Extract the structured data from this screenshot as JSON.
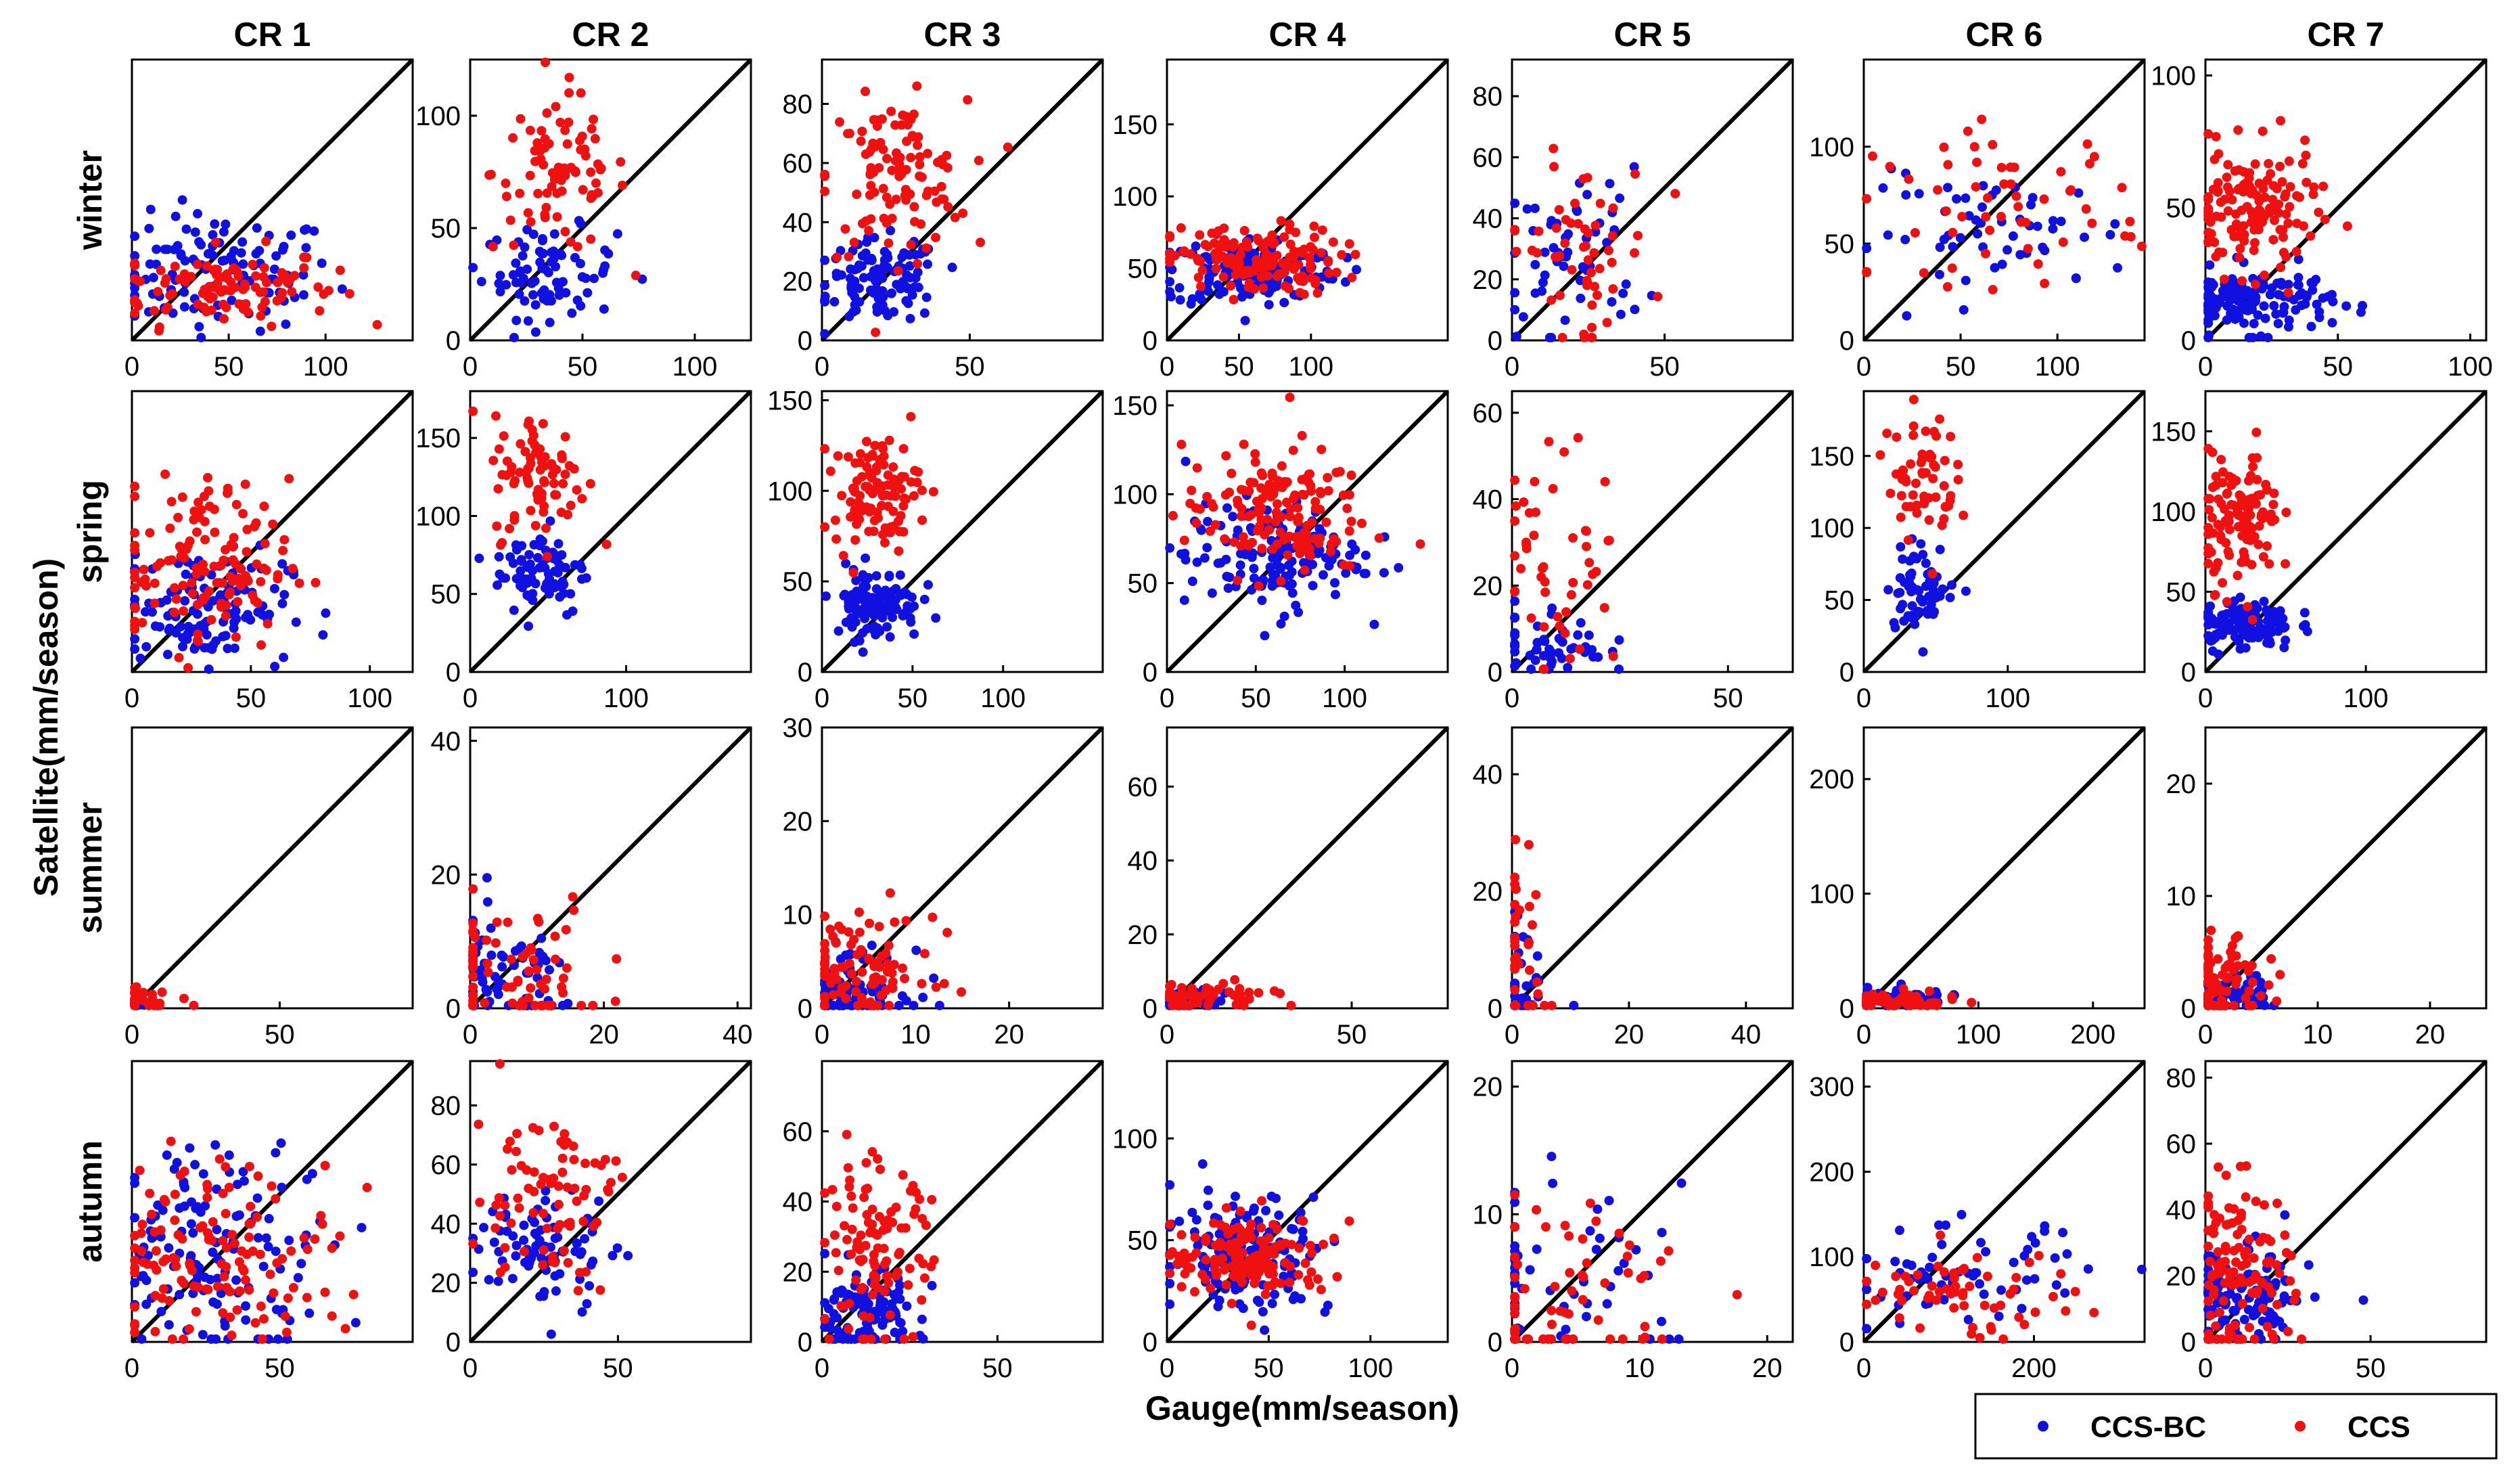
{
  "colors": {
    "ccs_bc": "#1010e0",
    "ccs": "#f01010",
    "axes": "#000000",
    "background": "#ffffff"
  },
  "chart_data": {
    "type": "scatter",
    "title": "",
    "xlabel": "Gauge(mm/season)",
    "ylabel": "Satellite(mm/season)",
    "columns": [
      "CR 1",
      "CR 2",
      "CR 3",
      "CR 4",
      "CR 5",
      "CR 6",
      "CR 7"
    ],
    "rows": [
      "winter",
      "spring",
      "summer",
      "autumn"
    ],
    "legend": {
      "placement": "bottom-right",
      "entries": [
        "CCS-BC",
        "CCS"
      ]
    },
    "panels": [
      [
        {
          "xlim": [
            0,
            145
          ],
          "ylim": [
            0,
            145
          ],
          "xticks": [
            0,
            50,
            100
          ],
          "yticks": [],
          "bc": {
            "cx": 45,
            "cy": 35,
            "sx": 30,
            "sy": 15,
            "n": 110
          },
          "ccs": {
            "cx": 45,
            "cy": 28,
            "sx": 30,
            "sy": 10,
            "n": 110
          }
        },
        {
          "xlim": [
            0,
            125
          ],
          "ylim": [
            0,
            125
          ],
          "xticks": [
            0,
            50,
            100
          ],
          "yticks": [
            0,
            50,
            100
          ],
          "bc": {
            "cx": 35,
            "cy": 30,
            "sx": 15,
            "sy": 10,
            "n": 80
          },
          "ccs": {
            "cx": 40,
            "cy": 75,
            "sx": 15,
            "sy": 18,
            "n": 80
          }
        },
        {
          "xlim": [
            0,
            95
          ],
          "ylim": [
            0,
            95
          ],
          "xticks": [
            0,
            50
          ],
          "yticks": [
            0,
            20,
            40,
            60,
            80
          ],
          "bc": {
            "cx": 20,
            "cy": 20,
            "sx": 10,
            "sy": 7,
            "n": 110
          },
          "ccs": {
            "cx": 25,
            "cy": 55,
            "sx": 12,
            "sy": 13,
            "n": 110
          }
        },
        {
          "xlim": [
            0,
            195
          ],
          "ylim": [
            0,
            195
          ],
          "xticks": [
            0,
            50,
            100
          ],
          "yticks": [
            0,
            50,
            100,
            150
          ],
          "bc": {
            "cx": 60,
            "cy": 48,
            "sx": 30,
            "sy": 12,
            "n": 150
          },
          "ccs": {
            "cx": 60,
            "cy": 55,
            "sx": 30,
            "sy": 12,
            "n": 150
          }
        },
        {
          "xlim": [
            0,
            92
          ],
          "ylim": [
            0,
            92
          ],
          "xticks": [
            0,
            50
          ],
          "yticks": [
            0,
            20,
            40,
            60,
            80
          ],
          "bc": {
            "cx": 20,
            "cy": 28,
            "sx": 12,
            "sy": 14,
            "n": 55
          },
          "ccs": {
            "cx": 22,
            "cy": 30,
            "sx": 12,
            "sy": 15,
            "n": 55
          }
        },
        {
          "xlim": [
            0,
            145
          ],
          "ylim": [
            0,
            145
          ],
          "xticks": [
            0,
            50,
            100
          ],
          "yticks": [
            0,
            50,
            100
          ],
          "bc": {
            "cx": 70,
            "cy": 55,
            "sx": 35,
            "sy": 15,
            "n": 55
          },
          "ccs": {
            "cx": 75,
            "cy": 70,
            "sx": 35,
            "sy": 20,
            "n": 55
          }
        },
        {
          "xlim": [
            0,
            106
          ],
          "ylim": [
            0,
            106
          ],
          "xticks": [
            0,
            50,
            100
          ],
          "yticks": [
            0,
            50,
            100
          ],
          "bc": {
            "cx": 18,
            "cy": 15,
            "sx": 15,
            "sy": 6,
            "n": 140
          },
          "ccs": {
            "cx": 18,
            "cy": 48,
            "sx": 12,
            "sy": 12,
            "n": 140
          }
        }
      ],
      [
        {
          "xlim": [
            0,
            118
          ],
          "ylim": [
            0,
            118
          ],
          "xticks": [
            0,
            50,
            100
          ],
          "yticks": [],
          "bc": {
            "cx": 30,
            "cy": 28,
            "sx": 18,
            "sy": 12,
            "n": 130
          },
          "ccs": {
            "cx": 30,
            "cy": 45,
            "sx": 18,
            "sy": 18,
            "n": 130
          }
        },
        {
          "xlim": [
            0,
            180
          ],
          "ylim": [
            0,
            180
          ],
          "xticks": [
            0,
            100
          ],
          "yticks": [
            0,
            50,
            100,
            150
          ],
          "bc": {
            "cx": 45,
            "cy": 65,
            "sx": 15,
            "sy": 15,
            "n": 80
          },
          "ccs": {
            "cx": 45,
            "cy": 125,
            "sx": 15,
            "sy": 20,
            "n": 80
          }
        },
        {
          "xlim": [
            0,
            155
          ],
          "ylim": [
            0,
            155
          ],
          "xticks": [
            0,
            50,
            100
          ],
          "yticks": [
            0,
            50,
            100,
            150
          ],
          "bc": {
            "cx": 30,
            "cy": 38,
            "sx": 12,
            "sy": 10,
            "n": 110
          },
          "ccs": {
            "cx": 30,
            "cy": 100,
            "sx": 12,
            "sy": 15,
            "n": 110
          }
        },
        {
          "xlim": [
            0,
            158
          ],
          "ylim": [
            0,
            158
          ],
          "xticks": [
            0,
            50,
            100
          ],
          "yticks": [
            0,
            50,
            100,
            150
          ],
          "bc": {
            "cx": 60,
            "cy": 65,
            "sx": 25,
            "sy": 15,
            "n": 150
          },
          "ccs": {
            "cx": 60,
            "cy": 90,
            "sx": 25,
            "sy": 18,
            "n": 150
          }
        },
        {
          "xlim": [
            0,
            65
          ],
          "ylim": [
            0,
            65
          ],
          "xticks": [
            0,
            50
          ],
          "yticks": [
            0,
            20,
            40,
            60
          ],
          "bc": {
            "cx": 8,
            "cy": 7,
            "sx": 7,
            "sy": 5,
            "n": 50
          },
          "ccs": {
            "cx": 10,
            "cy": 25,
            "sx": 8,
            "sy": 13,
            "n": 50
          }
        },
        {
          "xlim": [
            0,
            195
          ],
          "ylim": [
            0,
            195
          ],
          "xticks": [
            0,
            100
          ],
          "yticks": [
            0,
            50,
            100,
            150
          ],
          "bc": {
            "cx": 40,
            "cy": 60,
            "sx": 12,
            "sy": 15,
            "n": 60
          },
          "ccs": {
            "cx": 40,
            "cy": 135,
            "sx": 12,
            "sy": 22,
            "n": 60
          }
        },
        {
          "xlim": [
            0,
            175
          ],
          "ylim": [
            0,
            175
          ],
          "xticks": [
            0,
            100
          ],
          "yticks": [
            0,
            50,
            100,
            150
          ],
          "bc": {
            "cx": 25,
            "cy": 30,
            "sx": 15,
            "sy": 8,
            "n": 120
          },
          "ccs": {
            "cx": 22,
            "cy": 95,
            "sx": 12,
            "sy": 20,
            "n": 120
          }
        }
      ],
      [
        {
          "xlim": [
            0,
            95
          ],
          "ylim": [
            0,
            95
          ],
          "xticks": [
            0,
            50
          ],
          "yticks": [],
          "bc": {
            "cx": 3,
            "cy": 1,
            "sx": 5,
            "sy": 1,
            "n": 20
          },
          "ccs": {
            "cx": 5,
            "cy": 2,
            "sx": 10,
            "sy": 2,
            "n": 25
          }
        },
        {
          "xlim": [
            0,
            42
          ],
          "ylim": [
            0,
            42
          ],
          "xticks": [
            0,
            20,
            40
          ],
          "yticks": [
            0,
            20,
            40
          ],
          "bc": {
            "cx": 5,
            "cy": 3,
            "sx": 6,
            "sy": 5,
            "n": 70
          },
          "ccs": {
            "cx": 6,
            "cy": 5,
            "sx": 7,
            "sy": 6,
            "n": 70
          }
        },
        {
          "xlim": [
            0,
            30
          ],
          "ylim": [
            0,
            30
          ],
          "xticks": [
            0,
            10,
            20
          ],
          "yticks": [
            0,
            10,
            20,
            30
          ],
          "bc": {
            "cx": 3,
            "cy": 2,
            "sx": 3,
            "sy": 2,
            "n": 90
          },
          "ccs": {
            "cx": 4,
            "cy": 4,
            "sx": 4,
            "sy": 3,
            "n": 90
          }
        },
        {
          "xlim": [
            0,
            76
          ],
          "ylim": [
            0,
            76
          ],
          "xticks": [
            0,
            50
          ],
          "yticks": [
            0,
            20,
            40,
            60
          ],
          "bc": {
            "cx": 5,
            "cy": 2,
            "sx": 6,
            "sy": 1.5,
            "n": 50
          },
          "ccs": {
            "cx": 8,
            "cy": 3,
            "sx": 10,
            "sy": 2,
            "n": 60
          }
        },
        {
          "xlim": [
            0,
            48
          ],
          "ylim": [
            0,
            48
          ],
          "xticks": [
            0,
            20,
            40
          ],
          "yticks": [
            0,
            20,
            40
          ],
          "bc": {
            "cx": 2,
            "cy": 5,
            "sx": 2,
            "sy": 6,
            "n": 35
          },
          "ccs": {
            "cx": 2,
            "cy": 8,
            "sx": 2,
            "sy": 9,
            "n": 35
          }
        },
        {
          "xlim": [
            0,
            245
          ],
          "ylim": [
            0,
            245
          ],
          "xticks": [
            0,
            100,
            200
          ],
          "yticks": [
            0,
            100,
            200
          ],
          "bc": {
            "cx": 30,
            "cy": 8,
            "sx": 25,
            "sy": 5,
            "n": 60
          },
          "ccs": {
            "cx": 30,
            "cy": 6,
            "sx": 25,
            "sy": 4,
            "n": 60
          }
        },
        {
          "xlim": [
            0,
            25
          ],
          "ylim": [
            0,
            25
          ],
          "xticks": [
            0,
            10,
            20
          ],
          "yticks": [
            0,
            10,
            20
          ],
          "bc": {
            "cx": 1.5,
            "cy": 1,
            "sx": 2,
            "sy": 1,
            "n": 70
          },
          "ccs": {
            "cx": 1.5,
            "cy": 2,
            "sx": 2,
            "sy": 2,
            "n": 80
          }
        }
      ],
      [
        {
          "xlim": [
            0,
            95
          ],
          "ylim": [
            0,
            95
          ],
          "xticks": [
            0,
            50
          ],
          "yticks": [],
          "bc": {
            "cx": 30,
            "cy": 32,
            "sx": 20,
            "sy": 18,
            "n": 130
          },
          "ccs": {
            "cx": 30,
            "cy": 30,
            "sx": 20,
            "sy": 16,
            "n": 130
          }
        },
        {
          "xlim": [
            0,
            95
          ],
          "ylim": [
            0,
            95
          ],
          "xticks": [
            0,
            50
          ],
          "yticks": [
            0,
            20,
            40,
            60,
            80
          ],
          "bc": {
            "cx": 25,
            "cy": 32,
            "sx": 12,
            "sy": 10,
            "n": 80
          },
          "ccs": {
            "cx": 25,
            "cy": 50,
            "sx": 12,
            "sy": 15,
            "n": 80
          }
        },
        {
          "xlim": [
            0,
            80
          ],
          "ylim": [
            0,
            80
          ],
          "xticks": [
            0,
            50
          ],
          "yticks": [
            0,
            20,
            40,
            60
          ],
          "bc": {
            "cx": 12,
            "cy": 8,
            "sx": 8,
            "sy": 6,
            "n": 110
          },
          "ccs": {
            "cx": 15,
            "cy": 25,
            "sx": 8,
            "sy": 13,
            "n": 110
          }
        },
        {
          "xlim": [
            0,
            138
          ],
          "ylim": [
            0,
            138
          ],
          "xticks": [
            0,
            50,
            100
          ],
          "yticks": [
            0,
            50,
            100
          ],
          "bc": {
            "cx": 40,
            "cy": 45,
            "sx": 20,
            "sy": 15,
            "n": 150
          },
          "ccs": {
            "cx": 40,
            "cy": 42,
            "sx": 20,
            "sy": 10,
            "n": 150
          }
        },
        {
          "xlim": [
            0,
            22
          ],
          "ylim": [
            0,
            22
          ],
          "xticks": [
            0,
            10,
            20
          ],
          "yticks": [
            0,
            10,
            20
          ],
          "bc": {
            "cx": 4,
            "cy": 4,
            "sx": 5,
            "sy": 4,
            "n": 55
          },
          "ccs": {
            "cx": 4,
            "cy": 4,
            "sx": 5,
            "sy": 4,
            "n": 60
          }
        },
        {
          "xlim": [
            0,
            330
          ],
          "ylim": [
            0,
            330
          ],
          "xticks": [
            0,
            200
          ],
          "yticks": [
            0,
            100,
            200,
            300
          ],
          "bc": {
            "cx": 120,
            "cy": 75,
            "sx": 70,
            "sy": 30,
            "n": 60
          },
          "ccs": {
            "cx": 110,
            "cy": 55,
            "sx": 70,
            "sy": 25,
            "n": 60
          }
        },
        {
          "xlim": [
            0,
            85
          ],
          "ylim": [
            0,
            85
          ],
          "xticks": [
            0,
            50
          ],
          "yticks": [
            0,
            20,
            40,
            60,
            80
          ],
          "bc": {
            "cx": 12,
            "cy": 12,
            "sx": 10,
            "sy": 8,
            "n": 120
          },
          "ccs": {
            "cx": 10,
            "cy": 22,
            "sx": 8,
            "sy": 13,
            "n": 120
          }
        }
      ]
    ]
  }
}
